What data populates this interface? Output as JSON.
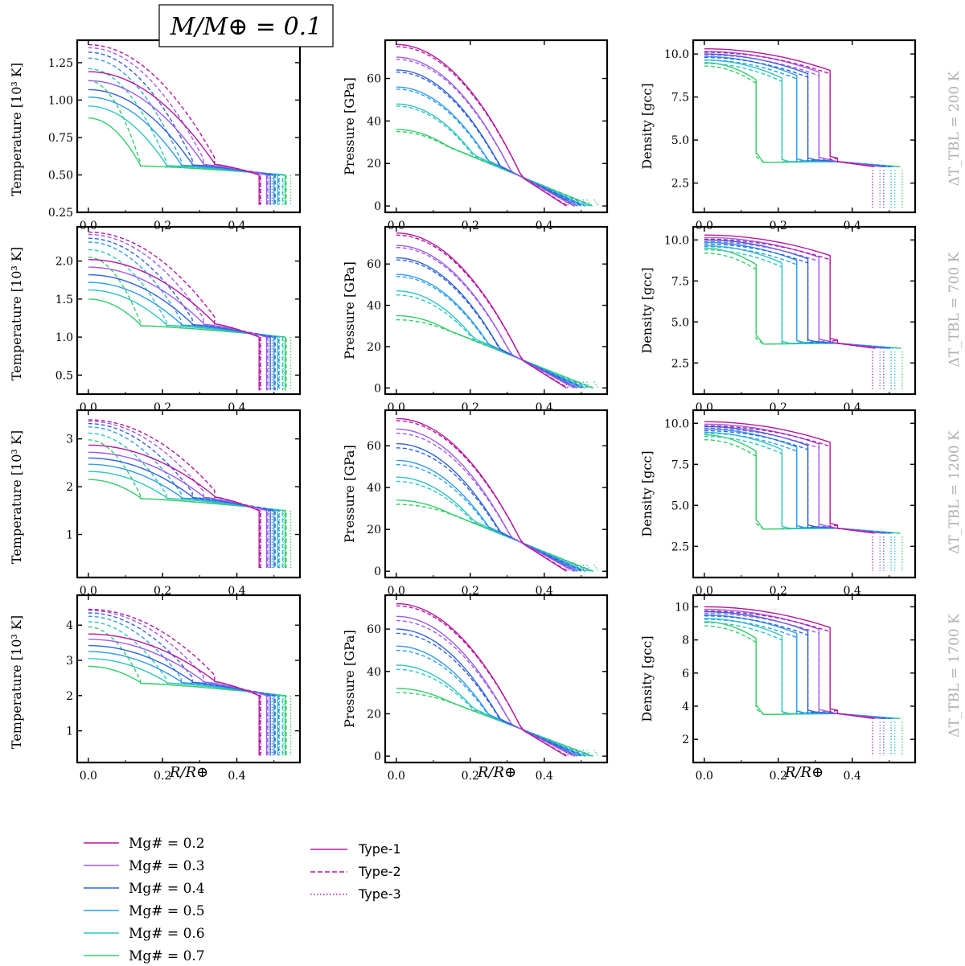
{
  "figure": {
    "title": "M/M⊕ = 0.1",
    "x_label": "R/R⊕",
    "row_labels": [
      "ΔT_TBL = 200 K",
      "ΔT_TBL = 700 K",
      "ΔT_TBL = 1200 K",
      "ΔT_TBL = 1700 K"
    ],
    "column_y_labels": [
      "Temperature [10³ K]",
      "Pressure [GPa]",
      "Density [gcc]"
    ]
  },
  "legend": {
    "mg_entries": [
      {
        "label": "Mg# = 0.2",
        "color": "#b5179e"
      },
      {
        "label": "Mg# = 0.3",
        "color": "#9d5ce8"
      },
      {
        "label": "Mg# = 0.4",
        "color": "#2f62d9"
      },
      {
        "label": "Mg# = 0.5",
        "color": "#2e9cec"
      },
      {
        "label": "Mg# = 0.6",
        "color": "#2ec5c2"
      },
      {
        "label": "Mg# = 0.7",
        "color": "#35cc6a"
      }
    ],
    "type_entries": [
      {
        "label": "Type-1",
        "style": "solid"
      },
      {
        "label": "Type-2",
        "style": "dashed"
      },
      {
        "label": "Type-3",
        "style": "dotted"
      }
    ]
  },
  "chart_data": {
    "type": "line",
    "mg_numbers": [
      0.2,
      0.3,
      0.4,
      0.5,
      0.6,
      0.7
    ],
    "core_radius": [
      0.34,
      0.31,
      0.28,
      0.25,
      0.21,
      0.14
    ],
    "type1_surface_radius": [
      0.46,
      0.48,
      0.49,
      0.5,
      0.51,
      0.53
    ],
    "type2_surface_radius": [
      0.46,
      0.48,
      0.5,
      0.51,
      0.52,
      0.53
    ],
    "type3_surface_radius": [
      0.45,
      0.47,
      0.48,
      0.5,
      0.51,
      0.53
    ],
    "xlim": [
      -0.03,
      0.57
    ],
    "xticks": [
      0.0,
      0.2,
      0.4
    ],
    "panels": [
      {
        "row": 0,
        "column": 0,
        "quantity": "temperature",
        "ylabel": "Temperature [10³ K]",
        "ylim": [
          0.25,
          1.4
        ],
        "yticks": [
          "0.25",
          "0.50",
          "0.75",
          "1.00",
          "1.25"
        ],
        "type1_center": [
          1.19,
          1.13,
          1.07,
          1.02,
          0.96,
          0.88
        ],
        "type2_center": [
          1.37,
          1.35,
          1.32,
          1.28,
          1.21,
          1.13
        ],
        "mantle_base": 0.56,
        "surface": 0.5,
        "bottom": 0.3
      },
      {
        "row": 0,
        "column": 1,
        "quantity": "pressure",
        "ylabel": "Pressure [GPa]",
        "ylim": [
          -3,
          78
        ],
        "yticks": [
          "0",
          "20",
          "40",
          "60"
        ],
        "type1_center": [
          76,
          70,
          64,
          56,
          48,
          36
        ],
        "type2_center": [
          75,
          69,
          63,
          55,
          47,
          35
        ],
        "cross_point": [
          0.335,
          14
        ]
      },
      {
        "row": 0,
        "column": 2,
        "quantity": "density",
        "ylabel": "Density [gcc]",
        "ylim": [
          0.8,
          10.8
        ],
        "yticks": [
          "2.5",
          "5.0",
          "7.5",
          "10.0"
        ],
        "type1_center": [
          10.3,
          10.15,
          10.0,
          9.85,
          9.65,
          9.5
        ],
        "type2_center": [
          10.1,
          9.95,
          9.8,
          9.65,
          9.45,
          9.3
        ],
        "mantle_top": 3.5,
        "surface": 3.45,
        "bottom": 1.0
      },
      {
        "row": 1,
        "column": 0,
        "quantity": "temperature",
        "ylabel": "Temperature [10³ K]",
        "ylim": [
          0.25,
          2.45
        ],
        "yticks": [
          "0.5",
          "1.0",
          "1.5",
          "2.0"
        ],
        "type1_center": [
          2.02,
          1.92,
          1.82,
          1.72,
          1.62,
          1.5
        ],
        "type2_center": [
          2.38,
          2.35,
          2.3,
          2.25,
          2.15,
          2.05
        ],
        "mantle_base": 1.15,
        "surface": 1.0,
        "bottom": 0.3
      },
      {
        "row": 1,
        "column": 1,
        "quantity": "pressure",
        "ylabel": "Pressure [GPa]",
        "ylim": [
          -3,
          78
        ],
        "yticks": [
          "0",
          "20",
          "40",
          "60"
        ],
        "type1_center": [
          75,
          69,
          63,
          55,
          47,
          35
        ],
        "type2_center": [
          74,
          68,
          62,
          54,
          45,
          33
        ],
        "cross_point": [
          0.335,
          14
        ]
      },
      {
        "row": 1,
        "column": 2,
        "quantity": "density",
        "ylabel": "Density [gcc]",
        "ylim": [
          0.6,
          10.8
        ],
        "yticks": [
          "2.5",
          "5.0",
          "7.5",
          "10.0"
        ],
        "type1_center": [
          10.3,
          10.15,
          10.0,
          9.85,
          9.65,
          9.5
        ],
        "type2_center": [
          10.05,
          9.9,
          9.75,
          9.6,
          9.4,
          9.2
        ],
        "mantle_top": 3.45,
        "surface": 3.4,
        "bottom": 0.8
      },
      {
        "row": 2,
        "column": 0,
        "quantity": "temperature",
        "ylabel": "Temperature [10³ K]",
        "ylim": [
          0.1,
          3.6
        ],
        "yticks": [
          "1",
          "2",
          "3"
        ],
        "type1_center": [
          2.87,
          2.72,
          2.6,
          2.47,
          2.32,
          2.15
        ],
        "type2_center": [
          3.4,
          3.37,
          3.32,
          3.25,
          3.12,
          2.98
        ],
        "mantle_base": 1.75,
        "surface": 1.5,
        "bottom": 0.3
      },
      {
        "row": 2,
        "column": 1,
        "quantity": "pressure",
        "ylabel": "Pressure [GPa]",
        "ylim": [
          -3,
          77
        ],
        "yticks": [
          "0",
          "20",
          "40",
          "60"
        ],
        "type1_center": [
          73,
          68,
          61,
          53,
          45,
          34
        ],
        "type2_center": [
          72,
          66,
          59,
          51,
          43,
          32
        ],
        "cross_point": [
          0.335,
          14
        ]
      },
      {
        "row": 2,
        "column": 2,
        "quantity": "density",
        "ylabel": "Density [gcc]",
        "ylim": [
          0.6,
          10.8
        ],
        "yticks": [
          "2.5",
          "5.0",
          "7.5",
          "10.0"
        ],
        "type1_center": [
          10.1,
          9.95,
          9.8,
          9.65,
          9.45,
          9.3
        ],
        "type2_center": [
          9.85,
          9.7,
          9.55,
          9.4,
          9.2,
          9.0
        ],
        "mantle_top": 3.35,
        "surface": 3.3,
        "bottom": 1.0
      },
      {
        "row": 3,
        "column": 0,
        "quantity": "temperature",
        "ylabel": "Temperature [10³ K]",
        "ylim": [
          0.1,
          4.85
        ],
        "yticks": [
          "1",
          "2",
          "3",
          "4"
        ],
        "type1_center": [
          3.75,
          3.6,
          3.42,
          3.25,
          3.05,
          2.83
        ],
        "type2_center": [
          4.45,
          4.42,
          4.35,
          4.25,
          4.1,
          3.95
        ],
        "mantle_base": 2.35,
        "surface": 2.0,
        "bottom": 0.3
      },
      {
        "row": 3,
        "column": 1,
        "quantity": "pressure",
        "ylabel": "Pressure [GPa]",
        "ylim": [
          -3,
          76
        ],
        "yticks": [
          "0",
          "20",
          "40",
          "60"
        ],
        "type1_center": [
          72,
          66,
          60,
          52,
          43,
          32
        ],
        "type2_center": [
          71,
          64,
          58,
          50,
          41,
          30
        ],
        "cross_point": [
          0.335,
          13
        ]
      },
      {
        "row": 3,
        "column": 2,
        "quantity": "density",
        "ylabel": "Density [gcc]",
        "ylim": [
          0.6,
          10.7
        ],
        "yticks": [
          "2",
          "4",
          "6",
          "8",
          "10"
        ],
        "type1_center": [
          10.0,
          9.85,
          9.7,
          9.5,
          9.3,
          9.1
        ],
        "type2_center": [
          9.75,
          9.6,
          9.45,
          9.25,
          9.05,
          8.85
        ],
        "mantle_top": 3.3,
        "surface": 3.25,
        "bottom": 1.0
      }
    ]
  }
}
